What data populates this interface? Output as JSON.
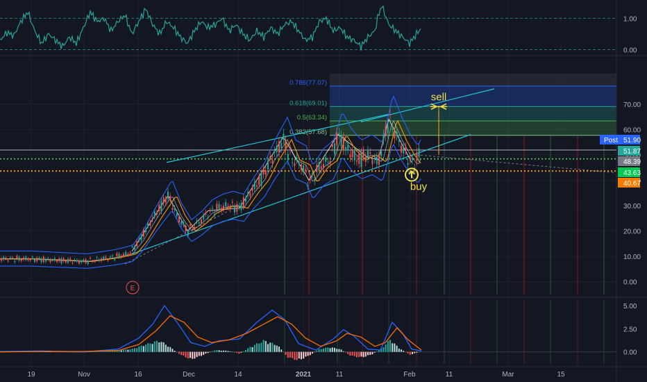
{
  "chart_data": [
    {
      "type": "line",
      "panel": "oscillator",
      "y_ticks": [
        "1.00",
        "0.00"
      ],
      "ylim": [
        -0.1,
        1.45
      ],
      "levels": [
        1.0,
        0.0
      ],
      "series": [
        {
          "color": "#26a69a",
          "points": [
            [
              0,
              0.3
            ],
            [
              10,
              0.55
            ],
            [
              20,
              0.45
            ],
            [
              30,
              0.9
            ],
            [
              40,
              1.2
            ],
            [
              50,
              0.6
            ],
            [
              60,
              0.2
            ],
            [
              70,
              0.5
            ],
            [
              80,
              0.3
            ],
            [
              90,
              0.1
            ],
            [
              100,
              0.4
            ],
            [
              110,
              0.2
            ],
            [
              120,
              0.7
            ],
            [
              130,
              1.2
            ],
            [
              140,
              0.9
            ],
            [
              150,
              1.0
            ],
            [
              160,
              0.6
            ],
            [
              170,
              0.9
            ],
            [
              180,
              1.1
            ],
            [
              190,
              0.5
            ],
            [
              200,
              0.9
            ],
            [
              210,
              1.3
            ],
            [
              220,
              0.8
            ],
            [
              230,
              0.5
            ],
            [
              240,
              0.9
            ],
            [
              250,
              0.7
            ],
            [
              260,
              0.4
            ],
            [
              270,
              0.2
            ],
            [
              280,
              0.6
            ],
            [
              290,
              0.9
            ],
            [
              300,
              0.7
            ],
            [
              310,
              0.8
            ],
            [
              320,
              1.0
            ],
            [
              330,
              0.6
            ],
            [
              340,
              0.8
            ],
            [
              350,
              0.5
            ],
            [
              360,
              0.3
            ],
            [
              370,
              0.6
            ],
            [
              380,
              0.4
            ],
            [
              390,
              0.7
            ],
            [
              400,
              0.5
            ],
            [
              410,
              0.8
            ],
            [
              420,
              0.9
            ],
            [
              430,
              0.6
            ],
            [
              440,
              0.3
            ],
            [
              450,
              0.4
            ],
            [
              460,
              0.9
            ],
            [
              470,
              1.0
            ],
            [
              480,
              0.6
            ],
            [
              490,
              0.7
            ],
            [
              500,
              0.4
            ],
            [
              510,
              0.3
            ],
            [
              520,
              0.1
            ],
            [
              530,
              0.4
            ],
            [
              540,
              0.6
            ],
            [
              545,
              1.1
            ],
            [
              550,
              1.4
            ],
            [
              555,
              1.1
            ],
            [
              560,
              0.8
            ],
            [
              570,
              0.6
            ],
            [
              580,
              0.4
            ],
            [
              590,
              0.2
            ],
            [
              600,
              0.5
            ],
            [
              607,
              0.7
            ]
          ]
        }
      ]
    },
    {
      "type": "candlestick",
      "panel": "price",
      "ylim": [
        -5,
        88
      ],
      "y_ticks": [
        "70.00",
        "60.00",
        "50.00",
        "40.00",
        "30.00",
        "20.00",
        "10.00",
        "0.00"
      ],
      "y_tick_values": [
        70,
        60,
        50,
        40,
        30,
        20,
        10,
        0
      ],
      "x_ticks": [
        "19",
        "Nov",
        "16",
        "Dec",
        "14",
        "2021",
        "11",
        "Feb",
        "11",
        "Mar",
        "15"
      ],
      "x_tick_values": [
        45,
        121,
        199,
        272,
        343,
        437,
        489,
        590,
        647,
        732,
        808
      ],
      "fib_levels": [
        {
          "label": "0.786(77.07)",
          "value": 77.07,
          "color": "#2962ff"
        },
        {
          "label": "0.618(69.01)",
          "value": 69.01,
          "color": "#26a69a"
        },
        {
          "label": "0.5(63.34)",
          "value": 63.34,
          "color": "#4caf50"
        },
        {
          "label": "0.382(57.68)",
          "value": 57.68,
          "color": "#81c784"
        }
      ],
      "horizontal_lines": [
        {
          "value": 51.9,
          "color": "#b2b5be"
        },
        {
          "value": 48.39,
          "color": "#4caf50",
          "style": "dotted"
        },
        {
          "value": 43.63,
          "color": "#ff9800",
          "style": "dotted"
        }
      ],
      "price_tags": [
        {
          "label": "Post",
          "value": "51.90",
          "bg": "#2962ff"
        },
        {
          "label": "",
          "value": "51.87",
          "bg": "#26a69a"
        },
        {
          "label": "",
          "value": "48.39",
          "bg": "#787b86"
        },
        {
          "label": "",
          "value": "43.63",
          "bg": "#00c853"
        },
        {
          "label": "",
          "value": "40.67",
          "bg": "#f57c00"
        }
      ],
      "close_path": [
        [
          0,
          9
        ],
        [
          40,
          9
        ],
        [
          80,
          8.5
        ],
        [
          120,
          8
        ],
        [
          160,
          9.5
        ],
        [
          185,
          11
        ],
        [
          200,
          16
        ],
        [
          220,
          25
        ],
        [
          242,
          34
        ],
        [
          255,
          26
        ],
        [
          270,
          20
        ],
        [
          285,
          23
        ],
        [
          300,
          27
        ],
        [
          315,
          29
        ],
        [
          330,
          30
        ],
        [
          345,
          29
        ],
        [
          360,
          35
        ],
        [
          375,
          40
        ],
        [
          390,
          48
        ],
        [
          408,
          56
        ],
        [
          420,
          48
        ],
        [
          435,
          46
        ],
        [
          445,
          39
        ],
        [
          460,
          45
        ],
        [
          475,
          48
        ],
        [
          487,
          58
        ],
        [
          500,
          52
        ],
        [
          515,
          48
        ],
        [
          530,
          50
        ],
        [
          545,
          47
        ],
        [
          560,
          64
        ],
        [
          573,
          56
        ],
        [
          585,
          50
        ],
        [
          596,
          46
        ],
        [
          607,
          52
        ]
      ],
      "markers": [
        {
          "label": "buy",
          "x": 593,
          "value": 46
        },
        {
          "label": "sell",
          "x": 632,
          "value": 70
        }
      ],
      "event_label": "E"
    },
    {
      "type": "bar",
      "panel": "macd",
      "ylim": [
        -1.3,
        5.6
      ],
      "y_ticks": [
        "5.00",
        "2.50",
        "0.00"
      ],
      "y_tick_values": [
        5,
        2.5,
        0
      ],
      "histogram": [
        [
          0,
          0.02
        ],
        [
          50,
          0.05
        ],
        [
          100,
          -0.05
        ],
        [
          150,
          0.05
        ],
        [
          190,
          0.3
        ],
        [
          210,
          0.8
        ],
        [
          230,
          1.2
        ],
        [
          245,
          0.5
        ],
        [
          260,
          -0.3
        ],
        [
          275,
          -0.8
        ],
        [
          290,
          -0.4
        ],
        [
          310,
          0.2
        ],
        [
          330,
          0.1
        ],
        [
          345,
          -0.2
        ],
        [
          360,
          0.5
        ],
        [
          380,
          1.2
        ],
        [
          400,
          0.7
        ],
        [
          415,
          -0.6
        ],
        [
          430,
          -0.9
        ],
        [
          445,
          -0.4
        ],
        [
          460,
          0.3
        ],
        [
          475,
          0.5
        ],
        [
          490,
          0.3
        ],
        [
          505,
          -0.4
        ],
        [
          520,
          -0.6
        ],
        [
          535,
          -0.3
        ],
        [
          550,
          0.4
        ],
        [
          562,
          1.3
        ],
        [
          575,
          0.4
        ],
        [
          590,
          -0.3
        ],
        [
          600,
          -0.1
        ],
        [
          607,
          0.1
        ]
      ],
      "series": [
        {
          "color": "#2962ff",
          "points": [
            [
              0,
              0.05
            ],
            [
              60,
              0.1
            ],
            [
              120,
              0.0
            ],
            [
              170,
              0.3
            ],
            [
              200,
              1.5
            ],
            [
              220,
              3.0
            ],
            [
              237,
              5.0
            ],
            [
              255,
              3.2
            ],
            [
              275,
              1.0
            ],
            [
              295,
              0.6
            ],
            [
              315,
              1.2
            ],
            [
              345,
              1.4
            ],
            [
              370,
              3.2
            ],
            [
              392,
              4.5
            ],
            [
              410,
              3.5
            ],
            [
              430,
              0.9
            ],
            [
              455,
              0.2
            ],
            [
              480,
              1.4
            ],
            [
              495,
              2.4
            ],
            [
              510,
              1.7
            ],
            [
              530,
              0.3
            ],
            [
              548,
              0.2
            ],
            [
              565,
              3.2
            ],
            [
              580,
              2.0
            ],
            [
              593,
              0.3
            ],
            [
              607,
              0.1
            ]
          ]
        },
        {
          "color": "#ff6d00",
          "points": [
            [
              0,
              0.0
            ],
            [
              60,
              0.05
            ],
            [
              120,
              0.05
            ],
            [
              170,
              0.15
            ],
            [
              200,
              0.8
            ],
            [
              225,
              2.3
            ],
            [
              245,
              3.9
            ],
            [
              265,
              3.2
            ],
            [
              285,
              1.6
            ],
            [
              305,
              1.0
            ],
            [
              330,
              1.3
            ],
            [
              355,
              2.0
            ],
            [
              380,
              3.0
            ],
            [
              400,
              3.8
            ],
            [
              420,
              3.0
            ],
            [
              440,
              1.5
            ],
            [
              462,
              0.6
            ],
            [
              485,
              1.2
            ],
            [
              500,
              2.0
            ],
            [
              520,
              1.6
            ],
            [
              540,
              0.6
            ],
            [
              555,
              1.0
            ],
            [
              572,
              2.6
            ],
            [
              588,
              1.3
            ],
            [
              607,
              0.2
            ]
          ]
        }
      ]
    }
  ]
}
